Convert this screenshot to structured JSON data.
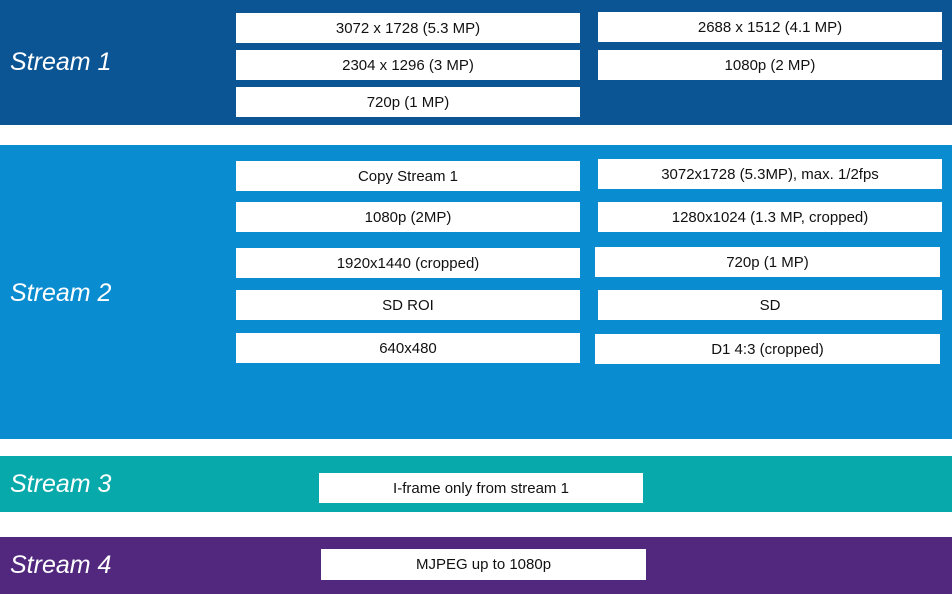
{
  "streams": [
    {
      "label": "Stream 1",
      "options": [
        "3072 x 1728 (5.3 MP)",
        "2688 x 1512 (4.1 MP)",
        "2304 x 1296 (3 MP)",
        "1080p (2 MP)",
        "720p (1 MP)"
      ]
    },
    {
      "label": "Stream 2",
      "options": [
        "Copy Stream 1",
        "3072x1728 (5.3MP), max. 1/2fps",
        "1080p (2MP)",
        "1280x1024 (1.3 MP, cropped)",
        "1920x1440 (cropped)",
        "720p (1 MP)",
        "SD ROI",
        "SD",
        "640x480",
        "D1 4:3 (cropped)"
      ]
    },
    {
      "label": "Stream 3",
      "options": [
        "I-frame only from stream 1"
      ]
    },
    {
      "label": "Stream 4",
      "options": [
        "MJPEG up to 1080p"
      ]
    }
  ]
}
